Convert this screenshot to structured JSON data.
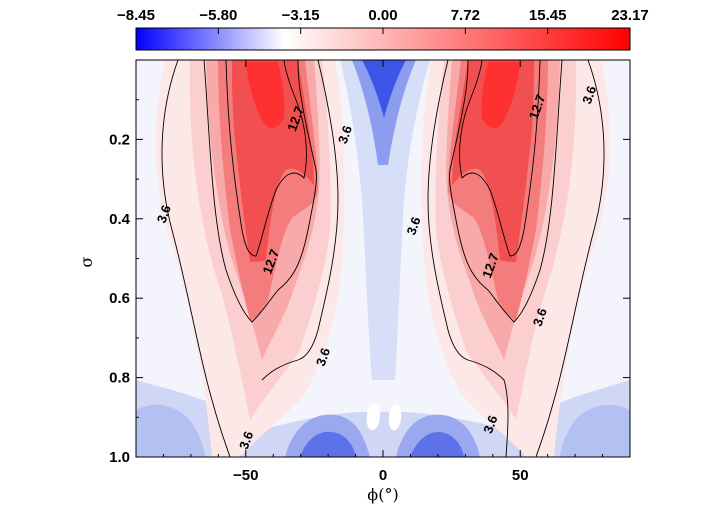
{
  "chart_data": {
    "type": "heatmap",
    "title": "",
    "xlabel": "ϕ(°)",
    "ylabel": "σ",
    "xlim": [
      -90,
      90
    ],
    "ylim": [
      0,
      1.0
    ],
    "y_inverted": true,
    "x_ticks": [
      -50,
      0,
      50
    ],
    "y_ticks": [
      0.2,
      0.4,
      0.6,
      0.8,
      1.0
    ],
    "x_tick_labels": [
      "−50",
      "0",
      "50"
    ],
    "y_tick_labels": [
      "0.2",
      "0.4",
      "0.6",
      "0.8",
      "1.0"
    ],
    "colorbar": {
      "position": "top",
      "ticks": [
        -8.45,
        -5.8,
        -3.15,
        0.0,
        7.72,
        15.45,
        23.17
      ],
      "tick_labels": [
        "−8.45",
        "−5.80",
        "−3.15",
        "0.00",
        "7.72",
        "15.45",
        "23.17"
      ],
      "colors": {
        "negative_max": "#0000ff",
        "zero": "#ffffff",
        "positive_max": "#ff0000"
      }
    },
    "contour_levels": [
      3.6,
      12.7
    ],
    "contour_labels": [
      {
        "text": "3.6",
        "x": -79,
        "y": 0.39
      },
      {
        "text": "12.7",
        "x": -31,
        "y": 0.15
      },
      {
        "text": "3.6",
        "x": -13,
        "y": 0.19
      },
      {
        "text": "12.7",
        "x": -40,
        "y": 0.51
      },
      {
        "text": "3.6",
        "x": -21,
        "y": 0.75
      },
      {
        "text": "3.6",
        "x": -49,
        "y": 0.96
      },
      {
        "text": "12.7",
        "x": 57,
        "y": 0.12
      },
      {
        "text": "3.6",
        "x": 76,
        "y": 0.09
      },
      {
        "text": "3.6",
        "x": 12,
        "y": 0.42
      },
      {
        "text": "12.7",
        "x": 40,
        "y": 0.52
      },
      {
        "text": "3.6",
        "x": 58,
        "y": 0.65
      },
      {
        "text": "3.6",
        "x": 40,
        "y": 0.92
      }
    ],
    "features": [
      {
        "name": "southern_jet",
        "x": -45,
        "y": 0.1,
        "value": 23.17
      },
      {
        "name": "southern_jet_lower",
        "x": -46,
        "y": 0.38,
        "value": 18.0
      },
      {
        "name": "northern_jet",
        "x": 46,
        "y": 0.1,
        "value": 23.17
      },
      {
        "name": "northern_jet_lower",
        "x": 46,
        "y": 0.38,
        "value": 18.0
      },
      {
        "name": "equatorial_easterlies",
        "x": 0,
        "y": 0.05,
        "value": -8.45
      },
      {
        "name": "surface_easterlies_south",
        "x": -25,
        "y": 0.96,
        "value": -7.0
      },
      {
        "name": "surface_easterlies_north",
        "x": 25,
        "y": 0.96,
        "value": -7.0
      }
    ]
  }
}
